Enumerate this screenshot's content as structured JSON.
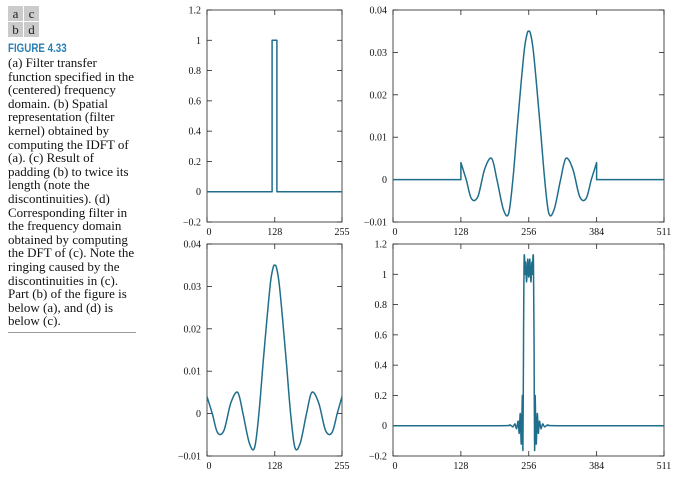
{
  "figure": {
    "panel_letters": [
      "a",
      "c",
      "b",
      "d"
    ],
    "label": "FIGURE 4.33",
    "caption": "(a) Filter transfer function specified in the (centered) frequency domain. (b) Spatial representation (filter kernel) obtained by computing the IDFT of (a). (c) Result of padding (b) to twice its length (note the discontinuities). (d) Corresponding filter in the frequency domain obtained by computing the DFT of (c). Note the ringing caused by the discontinuities in (c). Part (b) of the figure is below (a), and (d) is below (c)."
  },
  "chart_data": [
    {
      "type": "line",
      "panel": "a",
      "xlim": [
        0,
        255
      ],
      "ylim": [
        -0.2,
        1.2
      ],
      "x_ticks": [
        0,
        128,
        255
      ],
      "x_tick_labels": [
        "0",
        "128",
        "255"
      ],
      "y_ticks": [
        -0.2,
        0,
        0.2,
        0.4,
        0.6,
        0.8,
        1,
        1.2
      ],
      "y_tick_labels": [
        "−0.2",
        "0",
        "0.2",
        "0.4",
        "0.6",
        "0.8",
        "1",
        "1.2"
      ],
      "color": "#1f6e8c",
      "x": [
        0,
        123,
        123,
        132,
        132,
        255
      ],
      "y": [
        0,
        0,
        1,
        1,
        0,
        0
      ]
    },
    {
      "type": "line",
      "panel": "b",
      "xlim": [
        0,
        255
      ],
      "ylim": [
        -0.01,
        0.04
      ],
      "x_ticks": [
        0,
        128,
        255
      ],
      "x_tick_labels": [
        "0",
        "128",
        "255"
      ],
      "y_ticks": [
        -0.01,
        0,
        0.01,
        0.02,
        0.03,
        0.04
      ],
      "y_tick_labels": [
        "−0.01",
        "0",
        "0.01",
        "0.02",
        "0.03",
        "0.04"
      ],
      "color": "#1f6e8c",
      "x": [
        0,
        10,
        20,
        32,
        45,
        58,
        68,
        80,
        90,
        98,
        106,
        113,
        120,
        125,
        128,
        131,
        136,
        143,
        150,
        158,
        166,
        176,
        188,
        198,
        211,
        224,
        236,
        246,
        255
      ],
      "y": [
        0.004,
        0.0,
        -0.0045,
        -0.004,
        0.0025,
        0.005,
        0.0,
        -0.007,
        -0.008,
        0.0,
        0.012,
        0.022,
        0.031,
        0.0345,
        0.035,
        0.0345,
        0.031,
        0.022,
        0.012,
        0.0,
        -0.008,
        -0.007,
        0.0,
        0.005,
        0.0025,
        -0.004,
        -0.0045,
        0.0,
        0.004
      ]
    },
    {
      "type": "line",
      "panel": "c",
      "xlim": [
        0,
        511
      ],
      "ylim": [
        -0.01,
        0.04
      ],
      "x_ticks": [
        0,
        128,
        256,
        384,
        511
      ],
      "x_tick_labels": [
        "0",
        "128",
        "256",
        "384",
        "511"
      ],
      "y_ticks": [
        -0.01,
        0,
        0.01,
        0.02,
        0.03,
        0.04
      ],
      "y_tick_labels": [
        "−0.01",
        "0",
        "0.01",
        "0.02",
        "0.03",
        "0.04"
      ],
      "color": "#1f6e8c",
      "x": [
        0,
        128,
        128,
        138,
        148,
        160,
        173,
        186,
        196,
        208,
        218,
        226,
        234,
        241,
        248,
        253,
        256,
        259,
        264,
        271,
        278,
        286,
        294,
        304,
        316,
        326,
        339,
        352,
        364,
        374,
        384,
        384,
        511
      ],
      "y": [
        0,
        0,
        0.004,
        0.0,
        -0.0045,
        -0.004,
        0.0025,
        0.005,
        0.0,
        -0.007,
        -0.008,
        0.0,
        0.012,
        0.022,
        0.031,
        0.0345,
        0.035,
        0.0345,
        0.031,
        0.022,
        0.012,
        0.0,
        -0.008,
        -0.007,
        0.0,
        0.005,
        0.0025,
        -0.004,
        -0.0045,
        0.0,
        0.004,
        0,
        0
      ]
    },
    {
      "type": "line",
      "panel": "d",
      "xlim": [
        0,
        511
      ],
      "ylim": [
        -0.2,
        1.2
      ],
      "x_ticks": [
        0,
        128,
        256,
        384,
        511
      ],
      "x_tick_labels": [
        "0",
        "128",
        "256",
        "384",
        "511"
      ],
      "y_ticks": [
        -0.2,
        0,
        0.2,
        0.4,
        0.6,
        0.8,
        1,
        1.2
      ],
      "y_tick_labels": [
        "−0.2",
        "0",
        "0.2",
        "0.4",
        "0.6",
        "0.8",
        "1",
        "1.2"
      ],
      "color": "#1f6e8c",
      "x": [
        0,
        200,
        220,
        226,
        230,
        233,
        236,
        238,
        240,
        242,
        244,
        245,
        246,
        247,
        248,
        249,
        250,
        252,
        254,
        256,
        258,
        260,
        262,
        263,
        264,
        265,
        266,
        267,
        268,
        270,
        272,
        274,
        276,
        279,
        282,
        286,
        292,
        312,
        511
      ],
      "y": [
        0,
        0,
        0.005,
        -0.008,
        0.012,
        -0.02,
        0.03,
        -0.05,
        0.08,
        -0.12,
        0.2,
        -0.16,
        0.5,
        1.05,
        1.12,
        1.0,
        1.08,
        0.95,
        1.1,
        0.98,
        1.1,
        0.95,
        1.08,
        1.0,
        1.12,
        1.05,
        0.5,
        -0.16,
        0.2,
        -0.12,
        0.08,
        -0.05,
        0.03,
        -0.02,
        0.012,
        -0.008,
        0.005,
        0,
        0
      ]
    }
  ]
}
